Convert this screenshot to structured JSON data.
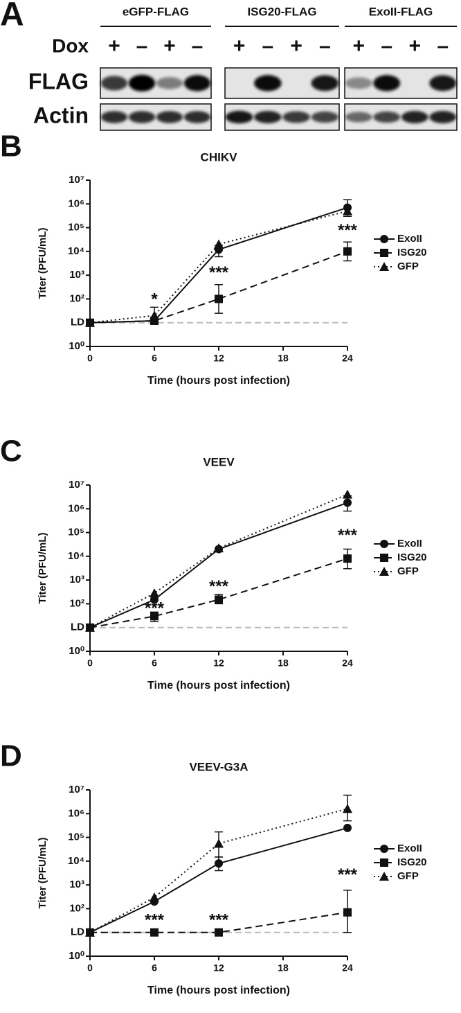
{
  "panel_a": {
    "label": "A",
    "row_labels": [
      "Dox",
      "FLAG",
      "Actin"
    ],
    "groups": [
      {
        "name": "eGFP-FLAG",
        "dox": [
          "+",
          "–",
          "+",
          "–"
        ]
      },
      {
        "name": "ISG20-FLAG",
        "dox": [
          "+",
          "–",
          "+",
          "–"
        ]
      },
      {
        "name": "ExoII-FLAG",
        "dox": [
          "+",
          "–",
          "+",
          "–"
        ]
      }
    ]
  },
  "chart_data": [
    {
      "type": "line",
      "panel": "B",
      "title": "CHIKV",
      "x_label": "Time (hours post infection)",
      "y_label": "Titer (PFU/mL)",
      "x": [
        0,
        6,
        12,
        24
      ],
      "xlim": [
        0,
        24
      ],
      "xticks": [
        0,
        6,
        12,
        18,
        24
      ],
      "ylim": [
        1,
        10000000
      ],
      "log_scale": true,
      "grid": false,
      "legend": "right",
      "yticks": [
        {
          "value": 1,
          "label": "10⁰"
        },
        {
          "value": 10,
          "label": "LD"
        },
        {
          "value": 100,
          "label": "10²"
        },
        {
          "value": 1000,
          "label": "10³"
        },
        {
          "value": 10000,
          "label": "10⁴"
        },
        {
          "value": 100000,
          "label": "10⁵"
        },
        {
          "value": 1000000,
          "label": "10⁶"
        },
        {
          "value": 10000000,
          "label": "10⁷"
        }
      ],
      "reference_line": {
        "value": 10,
        "color": "#bbbbbb"
      },
      "series": [
        {
          "name": "ExoII",
          "color": "#111111",
          "marker": "circle",
          "dash": "solid",
          "values": [
            10,
            12,
            12000,
            700000
          ],
          "error_lower": [
            null,
            null,
            6000,
            300000
          ],
          "error_upper": [
            null,
            null,
            18000,
            1500000
          ]
        },
        {
          "name": "ISG20",
          "color": "#111111",
          "marker": "square",
          "dash": "dashed",
          "values": [
            10,
            12,
            100,
            10000
          ],
          "error_lower": [
            null,
            null,
            25,
            4000
          ],
          "error_upper": [
            null,
            null,
            400,
            25000
          ]
        },
        {
          "name": "GFP",
          "color": "#111111",
          "marker": "triangle",
          "dash": "dotted",
          "values": [
            10,
            20,
            20000,
            500000
          ],
          "error_lower": [
            null,
            10,
            null,
            null
          ],
          "error_upper": [
            null,
            45,
            null,
            null
          ]
        }
      ],
      "annotations": [
        {
          "text": "*",
          "x": 6,
          "y": 90
        },
        {
          "text": "***",
          "x": 12,
          "y": 1200
        },
        {
          "text": "***",
          "x": 24,
          "y": 70000
        }
      ]
    },
    {
      "type": "line",
      "panel": "C",
      "title": "VEEV",
      "x_label": "Time (hours post infection)",
      "y_label": "Titer (PFU/mL)",
      "x": [
        0,
        6,
        12,
        24
      ],
      "xlim": [
        0,
        24
      ],
      "xticks": [
        0,
        6,
        12,
        18,
        24
      ],
      "ylim": [
        1,
        10000000
      ],
      "log_scale": true,
      "grid": false,
      "legend": "right",
      "yticks": [
        {
          "value": 1,
          "label": "10⁰"
        },
        {
          "value": 10,
          "label": "LD"
        },
        {
          "value": 100,
          "label": "10²"
        },
        {
          "value": 1000,
          "label": "10³"
        },
        {
          "value": 10000,
          "label": "10⁴"
        },
        {
          "value": 100000,
          "label": "10⁵"
        },
        {
          "value": 1000000,
          "label": "10⁶"
        },
        {
          "value": 10000000,
          "label": "10⁷"
        }
      ],
      "reference_line": {
        "value": 10,
        "color": "#bbbbbb"
      },
      "series": [
        {
          "name": "ExoII",
          "color": "#111111",
          "marker": "circle",
          "dash": "solid",
          "values": [
            10,
            150,
            20000,
            1800000
          ],
          "error_lower": [
            null,
            null,
            null,
            800000
          ],
          "error_upper": [
            null,
            null,
            null,
            3500000
          ]
        },
        {
          "name": "ISG20",
          "color": "#111111",
          "marker": "square",
          "dash": "dashed",
          "values": [
            10,
            30,
            150,
            8000
          ],
          "error_lower": [
            null,
            18,
            100,
            3000
          ],
          "error_upper": [
            null,
            45,
            250,
            20000
          ]
        },
        {
          "name": "GFP",
          "color": "#111111",
          "marker": "triangle",
          "dash": "dotted",
          "values": [
            10,
            280,
            22000,
            4000000
          ],
          "error_lower": [
            null,
            null,
            null,
            null
          ],
          "error_upper": [
            null,
            null,
            null,
            null
          ]
        }
      ],
      "annotations": [
        {
          "text": "***",
          "x": 6,
          "y": 60
        },
        {
          "text": "***",
          "x": 12,
          "y": 500
        },
        {
          "text": "***",
          "x": 24,
          "y": 70000
        }
      ]
    },
    {
      "type": "line",
      "panel": "D",
      "title": "VEEV-G3A",
      "x_label": "Time (hours post infection)",
      "y_label": "Titer (PFU/mL)",
      "x": [
        0,
        6,
        12,
        24
      ],
      "xlim": [
        0,
        24
      ],
      "xticks": [
        0,
        6,
        12,
        18,
        24
      ],
      "ylim": [
        1,
        10000000
      ],
      "log_scale": true,
      "grid": false,
      "legend": "right",
      "yticks": [
        {
          "value": 1,
          "label": "10⁰"
        },
        {
          "value": 10,
          "label": "LD"
        },
        {
          "value": 100,
          "label": "10²"
        },
        {
          "value": 1000,
          "label": "10³"
        },
        {
          "value": 10000,
          "label": "10⁴"
        },
        {
          "value": 100000,
          "label": "10⁵"
        },
        {
          "value": 1000000,
          "label": "10⁶"
        },
        {
          "value": 10000000,
          "label": "10⁷"
        }
      ],
      "reference_line": {
        "value": 10,
        "color": "#bbbbbb"
      },
      "series": [
        {
          "name": "ExoII",
          "color": "#111111",
          "marker": "circle",
          "dash": "solid",
          "values": [
            10,
            200,
            8000,
            250000
          ],
          "error_lower": [
            null,
            null,
            4000,
            null
          ],
          "error_upper": [
            null,
            null,
            15000,
            null
          ]
        },
        {
          "name": "ISG20",
          "color": "#111111",
          "marker": "square",
          "dash": "dashed",
          "values": [
            10,
            10,
            10,
            70
          ],
          "error_lower": [
            null,
            null,
            null,
            10
          ],
          "error_upper": [
            null,
            null,
            null,
            600
          ]
        },
        {
          "name": "GFP",
          "color": "#111111",
          "marker": "triangle",
          "dash": "dotted",
          "values": [
            10,
            300,
            55000,
            1600000
          ],
          "error_lower": [
            null,
            null,
            15000,
            500000
          ],
          "error_upper": [
            null,
            null,
            170000,
            6000000
          ]
        }
      ],
      "annotations": [
        {
          "text": "***",
          "x": 6,
          "y": 30
        },
        {
          "text": "***",
          "x": 12,
          "y": 30
        },
        {
          "text": "***",
          "x": 24,
          "y": 2500
        }
      ]
    }
  ]
}
